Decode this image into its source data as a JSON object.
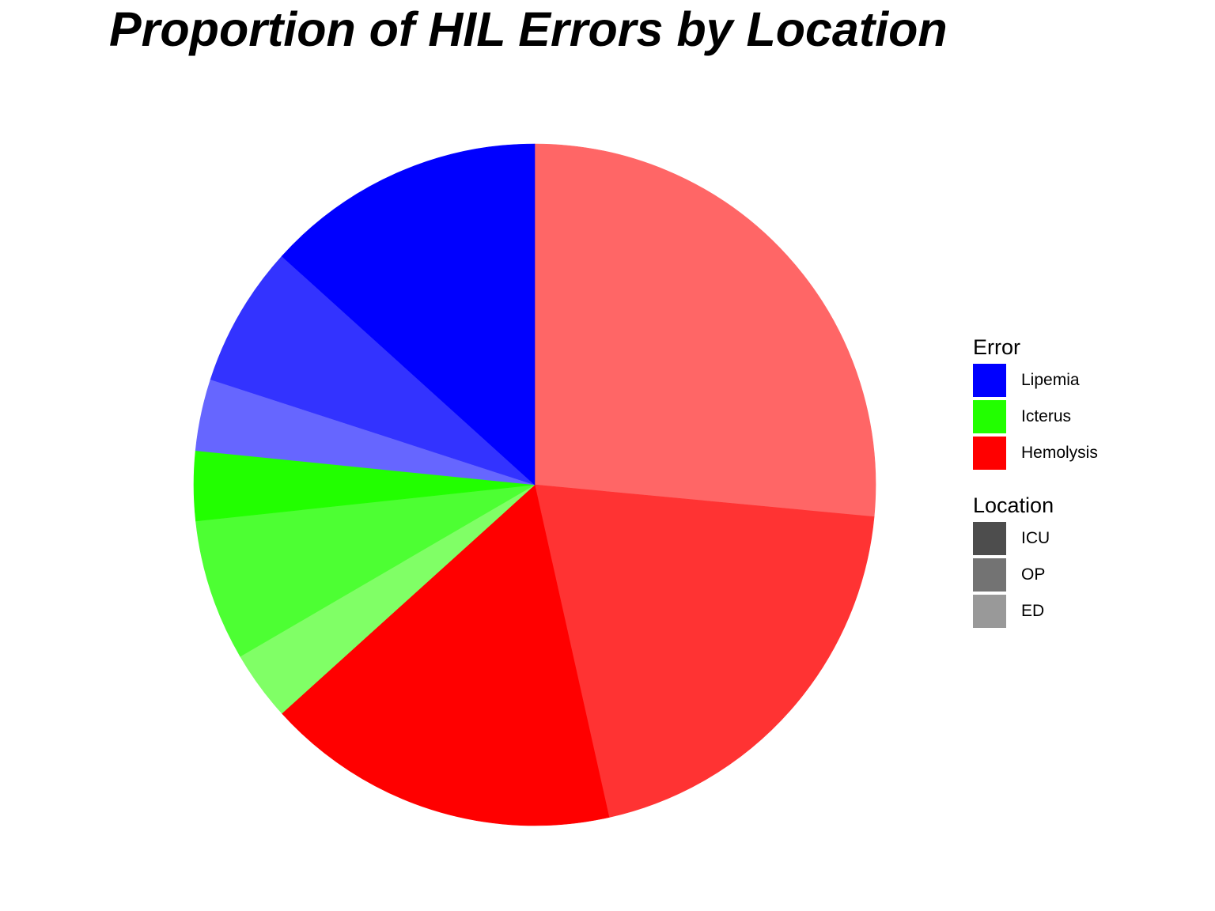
{
  "chart_data": {
    "type": "pie",
    "title": "Proportion of HIL Errors by Location",
    "unit": "%",
    "slices": [
      {
        "error": "Hemolysis",
        "location": "ED",
        "value": 26.5,
        "color": "#ff6666"
      },
      {
        "error": "Hemolysis",
        "location": "OP",
        "value": 20.0,
        "color": "#ff3333"
      },
      {
        "error": "Hemolysis",
        "location": "ICU",
        "value": 16.8,
        "color": "#ff0000"
      },
      {
        "error": "Icterus",
        "location": "ED",
        "value": 3.3,
        "color": "#80ff66"
      },
      {
        "error": "Icterus",
        "location": "OP",
        "value": 6.7,
        "color": "#4dff33"
      },
      {
        "error": "Icterus",
        "location": "ICU",
        "value": 3.3,
        "color": "#22ff00"
      },
      {
        "error": "Lipemia",
        "location": "ED",
        "value": 3.4,
        "color": "#6666ff"
      },
      {
        "error": "Lipemia",
        "location": "OP",
        "value": 6.7,
        "color": "#3333ff"
      },
      {
        "error": "Lipemia",
        "location": "ICU",
        "value": 13.3,
        "color": "#0000ff"
      }
    ],
    "legend": {
      "placement": "right",
      "error": {
        "title": "Error",
        "items": [
          {
            "label": "Lipemia",
            "color": "#0000ff"
          },
          {
            "label": "Icterus",
            "color": "#22ff00"
          },
          {
            "label": "Hemolysis",
            "color": "#ff0000"
          }
        ]
      },
      "location": {
        "title": "Location",
        "items": [
          {
            "label": "ICU",
            "color": "#4d4d4d"
          },
          {
            "label": "OP",
            "color": "#737373"
          },
          {
            "label": "ED",
            "color": "#999999"
          }
        ]
      }
    }
  }
}
